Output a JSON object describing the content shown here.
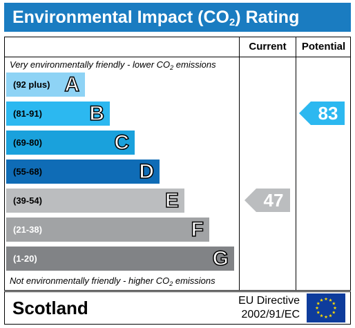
{
  "title": {
    "main": "Environmental Impact (CO",
    "sub": "2",
    "tail": ") Rating"
  },
  "columns": {
    "current": "Current",
    "potential": "Potential"
  },
  "notes": {
    "top": {
      "pre": "Very environmentally friendly - lower CO",
      "sub": "2",
      "post": " emissions"
    },
    "bottom": {
      "pre": "Not environmentally friendly - higher CO",
      "sub": "2",
      "post": " emissions"
    }
  },
  "bands": [
    {
      "range": "(92 plus)",
      "letter": "A",
      "color": "#8ed3f5",
      "range_color": "#000000"
    },
    {
      "range": "(81-91)",
      "letter": "B",
      "color": "#2cb8f0",
      "range_color": "#000000"
    },
    {
      "range": "(69-80)",
      "letter": "C",
      "color": "#1aa1dc",
      "range_color": "#000000"
    },
    {
      "range": "(55-68)",
      "letter": "D",
      "color": "#0f6cb6",
      "range_color": "#000000"
    },
    {
      "range": "(39-54)",
      "letter": "E",
      "color": "#bbbdbf",
      "range_color": "#000000"
    },
    {
      "range": "(21-38)",
      "letter": "F",
      "color": "#a1a3a5",
      "range_color": "#ffffff"
    },
    {
      "range": "(1-20)",
      "letter": "G",
      "color": "#818386",
      "range_color": "#ffffff"
    }
  ],
  "current": {
    "value": "47",
    "band": "E",
    "color": "#bbbdbf"
  },
  "potential": {
    "value": "83",
    "band": "B",
    "color": "#2cb8f0"
  },
  "footer": {
    "region": "Scotland",
    "directive_line1": "EU Directive",
    "directive_line2": "2002/91/EC",
    "flag_icon": "eu-flag-icon"
  }
}
